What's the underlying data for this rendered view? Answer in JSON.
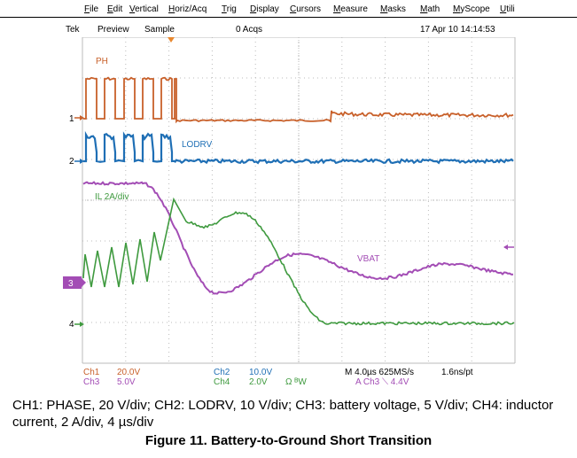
{
  "menu": [
    "File",
    "Edit",
    "Vertical",
    "Horiz/Acq",
    "Trig",
    "Display",
    "Cursors",
    "Measure",
    "Masks",
    "Math",
    "MyScope",
    "Utili"
  ],
  "status": {
    "brand": "Tek",
    "mode": "Preview",
    "acq": "Sample",
    "count": "0 Acqs",
    "timestamp": "17 Apr 10 14:14:53"
  },
  "channels": {
    "ph_label": "PH",
    "lodrv_label": "LODRV",
    "il_label": "IL 2A/div",
    "vbat_label": "VBAT",
    "markers": [
      "1",
      "2",
      "3",
      "4"
    ]
  },
  "readout": {
    "ch1": "Ch1",
    "ch1_scale": "20.0V",
    "ch3": "Ch3",
    "ch3_scale": "5.0V",
    "ch2": "Ch2",
    "ch2_scale": "10.0V",
    "ch4": "Ch4",
    "ch4_scale": "2.0V",
    "ch4_bw": "Ω ᴮW",
    "timebase": "M 4.0µs 625MS/s",
    "resolution": "1.6ns/pt",
    "trigger": "A  Ch3  ⟍  4.4V"
  },
  "colors": {
    "ch1": "#c8602a",
    "ch2": "#1f6fb5",
    "ch3": "#a34db5",
    "ch4": "#3f9a3f",
    "grid": "#bbbbbb",
    "bg": "#ffffff"
  },
  "caption": "CH1: PHASE, 20 V/div; CH2: LODRV, 10 V/div; CH3: battery voltage, 5 V/div; CH4: inductor current, 2 A/div, 4 µs/div",
  "figure_title": "Figure 11. Battery-to-Ground Short Transition"
}
